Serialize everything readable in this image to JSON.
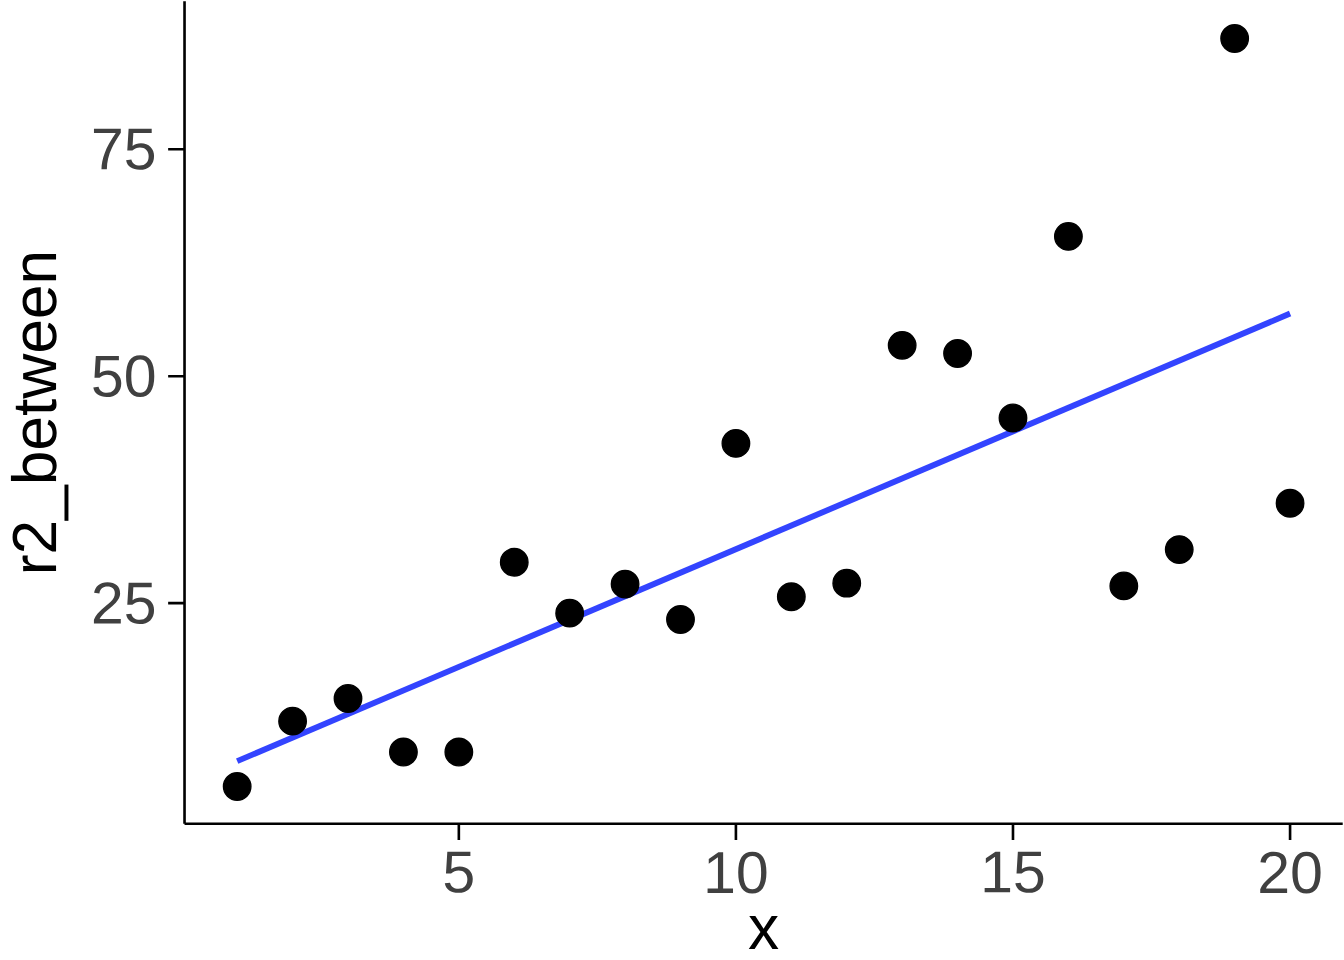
{
  "chart_data": {
    "type": "scatter",
    "xlabel": "x",
    "ylabel": "r2_between",
    "xlim": [
      0.05,
      20.95
    ],
    "ylim": [
      0.7,
      91.3
    ],
    "xticks": [
      5,
      10,
      15,
      20
    ],
    "yticks": [
      25,
      50,
      75
    ],
    "grid": false,
    "marker": "circle",
    "series": [
      {
        "color": "#000000",
        "x": [
          1,
          2,
          3,
          4,
          5,
          6,
          7,
          8,
          9,
          10,
          11,
          12,
          13,
          14,
          15,
          16,
          17,
          18,
          19,
          20
        ],
        "values": [
          4.8,
          12.0,
          14.5,
          8.6,
          8.6,
          29.5,
          23.9,
          27.1,
          23.2,
          42.6,
          25.7,
          27.2,
          53.4,
          52.5,
          45.4,
          65.4,
          26.9,
          30.9,
          87.2,
          36.0
        ]
      },
      {
        "type": "line",
        "color": "#3344ff",
        "marker": "none",
        "line_style": "solid",
        "x": [
          1,
          20
        ],
        "values": [
          7.6,
          56.9
        ]
      }
    ]
  }
}
